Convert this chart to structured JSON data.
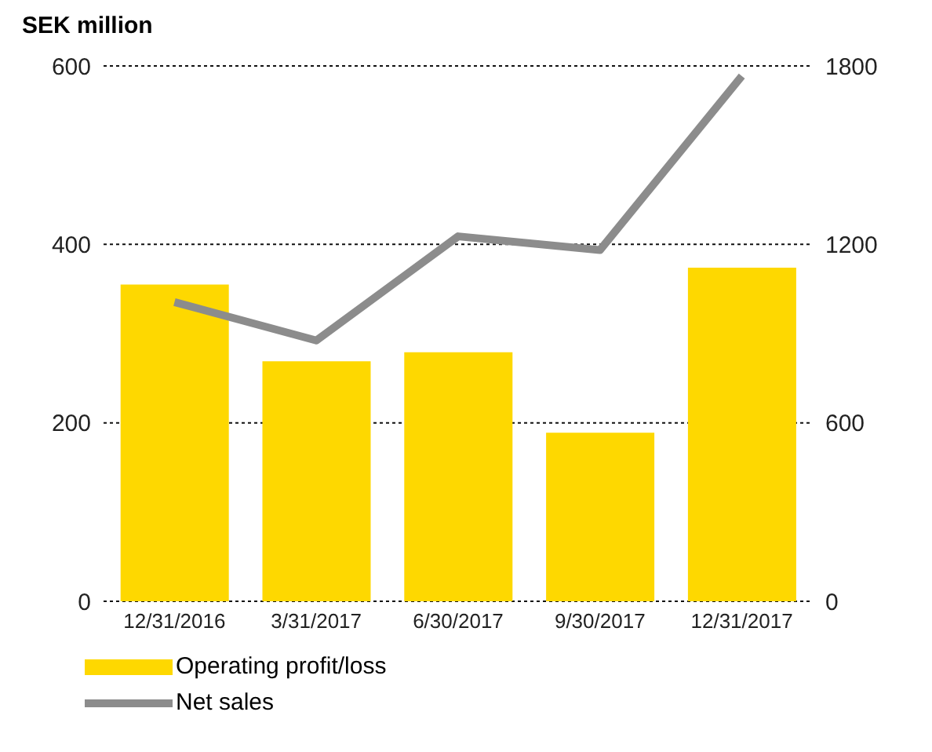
{
  "chart_data": {
    "type": "bar",
    "annotations": [
      "SEK million"
    ],
    "categories": [
      "12/31/2016",
      "3/31/2017",
      "6/30/2017",
      "9/30/2017",
      "12/31/2017"
    ],
    "series": [
      {
        "name": "Operating profit/loss",
        "color": "#fed800",
        "values": [
          355,
          269,
          279,
          189,
          374
        ]
      },
      {
        "name": "Net sales",
        "type": "line",
        "axis": "y2",
        "color": "#8c8c8c",
        "values": [
          1006,
          877,
          1227,
          1181,
          1766
        ]
      }
    ],
    "ylim": [
      0,
      600
    ],
    "yticks": [
      0,
      200,
      400,
      600
    ],
    "y2lim": [
      0,
      1800
    ],
    "y2ticks": [
      0,
      600,
      1200,
      1800
    ],
    "grid": "y",
    "legend": "bottom left",
    "marker": "none"
  }
}
